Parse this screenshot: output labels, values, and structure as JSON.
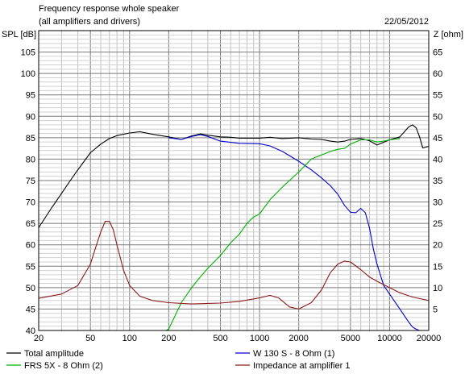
{
  "chart_data": {
    "type": "line",
    "title": "Frequency response whole speaker",
    "subtitle": "(all amplifiers and drivers)",
    "date": "22/05/2012",
    "ylabel": "SPL [dB]",
    "y2label": "Z [ohm]",
    "x_scale": "log",
    "xlim": [
      20,
      20000
    ],
    "ylim": [
      40,
      110
    ],
    "y2lim": [
      0,
      70
    ],
    "grid": true,
    "x_ticks": [
      {
        "v": 20,
        "label": "20"
      },
      {
        "v": 50,
        "label": "50"
      },
      {
        "v": 100,
        "label": "100"
      },
      {
        "v": 200,
        "label": "200"
      },
      {
        "v": 500,
        "label": "500"
      },
      {
        "v": 1000,
        "label": "1000"
      },
      {
        "v": 2000,
        "label": "2000"
      },
      {
        "v": 5000,
        "label": "5000"
      },
      {
        "v": 10000,
        "label": "10000"
      },
      {
        "v": 20000,
        "label": "20000"
      }
    ],
    "y_ticks": [
      {
        "v": 40,
        "label": "40"
      },
      {
        "v": 45,
        "label": "45"
      },
      {
        "v": 50,
        "label": "50"
      },
      {
        "v": 55,
        "label": "55"
      },
      {
        "v": 60,
        "label": "60"
      },
      {
        "v": 65,
        "label": "65"
      },
      {
        "v": 70,
        "label": "70"
      },
      {
        "v": 75,
        "label": "75"
      },
      {
        "v": 80,
        "label": "80"
      },
      {
        "v": 85,
        "label": "85"
      },
      {
        "v": 90,
        "label": "90"
      },
      {
        "v": 95,
        "label": "95"
      },
      {
        "v": 100,
        "label": "100"
      },
      {
        "v": 105,
        "label": "105"
      }
    ],
    "y2_ticks": [
      {
        "v": 5,
        "label": "5"
      },
      {
        "v": 10,
        "label": "10"
      },
      {
        "v": 15,
        "label": "15"
      },
      {
        "v": 20,
        "label": "20"
      },
      {
        "v": 25,
        "label": "25"
      },
      {
        "v": 30,
        "label": "30"
      },
      {
        "v": 35,
        "label": "35"
      },
      {
        "v": 40,
        "label": "40"
      },
      {
        "v": 45,
        "label": "45"
      },
      {
        "v": 50,
        "label": "50"
      },
      {
        "v": 55,
        "label": "55"
      },
      {
        "v": 60,
        "label": "60"
      },
      {
        "v": 65,
        "label": "65"
      }
    ],
    "legend_position": "bottom",
    "series": [
      {
        "name": "Total amplitude",
        "color": "#000000",
        "axis": "left",
        "legend_slot": 0,
        "x": [
          20,
          25,
          30,
          35,
          40,
          50,
          60,
          70,
          80,
          100,
          120,
          150,
          200,
          250,
          300,
          350,
          400,
          500,
          600,
          700,
          800,
          1000,
          1200,
          1500,
          2000,
          2500,
          3000,
          3500,
          4000,
          4500,
          5000,
          6000,
          7000,
          8000,
          10000,
          12000,
          14000,
          15000,
          16000,
          17000,
          18000,
          20000
        ],
        "y": [
          64,
          68.5,
          72,
          75,
          77.5,
          81.5,
          83.5,
          84.8,
          85.5,
          86.1,
          86.4,
          85.8,
          85.2,
          84.6,
          85.4,
          85.9,
          85.6,
          85.2,
          85.1,
          84.9,
          84.9,
          84.9,
          85.1,
          84.8,
          85,
          84.7,
          84.6,
          84.2,
          84,
          84.2,
          84.6,
          84.8,
          84.3,
          83.3,
          84.5,
          85.2,
          87.5,
          88,
          87.3,
          85.2,
          82.6,
          83
        ]
      },
      {
        "name": "W 130 S - 8 Ohm (1)",
        "color": "#0000cc",
        "axis": "left",
        "legend_slot": 1,
        "x": [
          200,
          250,
          300,
          350,
          400,
          500,
          700,
          1000,
          1200,
          1500,
          2000,
          2500,
          3000,
          3500,
          4000,
          4500,
          5000,
          5500,
          6000,
          6500,
          7000,
          7500,
          8000,
          9000,
          10000,
          12000,
          14000,
          15000,
          16000,
          17000,
          18000,
          20000
        ],
        "y": [
          85,
          84.6,
          85.3,
          85.7,
          85.3,
          84.2,
          83.7,
          83.6,
          83.1,
          81.8,
          79.5,
          77.5,
          75.6,
          73.8,
          71.8,
          69.2,
          67.6,
          67.5,
          68.5,
          67.5,
          64,
          59,
          55.5,
          50.5,
          48.5,
          45,
          42,
          40.8,
          40.3,
          40,
          40,
          40
        ]
      },
      {
        "name": "FRS 5X - 8 Ohm (2)",
        "color": "#00b000",
        "axis": "left",
        "legend_slot": 2,
        "x": [
          20,
          100,
          150,
          190,
          200,
          250,
          300,
          350,
          400,
          500,
          600,
          700,
          800,
          900,
          1000,
          1200,
          1500,
          2000,
          2500,
          3000,
          3500,
          4000,
          4500,
          5000,
          6000,
          7000,
          8000,
          9000,
          10000,
          12000
        ],
        "y": [
          40,
          40,
          40,
          40,
          40.3,
          46.5,
          50,
          52.5,
          54.5,
          57.5,
          60.5,
          62.5,
          65,
          66.5,
          67.2,
          70.5,
          73.5,
          77,
          80,
          81,
          81.8,
          82.3,
          82.5,
          83.5,
          84.5,
          84.5,
          84,
          84.2,
          84.5,
          84.8
        ]
      },
      {
        "name": "Impedance at amplifier 1",
        "color": "#8b1a1a",
        "axis": "right",
        "legend_slot": 3,
        "x": [
          20,
          30,
          40,
          50,
          55,
          60,
          65,
          70,
          75,
          80,
          90,
          100,
          120,
          150,
          200,
          300,
          500,
          700,
          1000,
          1200,
          1400,
          1700,
          2000,
          2500,
          3000,
          3500,
          4000,
          4500,
          5000,
          6000,
          7000,
          8000,
          10000,
          12000,
          15000,
          20000
        ],
        "y": [
          7.5,
          8.5,
          10.5,
          15.5,
          19.5,
          23,
          25.5,
          25.5,
          23.5,
          20,
          14,
          10.5,
          8,
          7,
          6.5,
          6.2,
          6.4,
          6.8,
          7.6,
          8.2,
          7.6,
          5.5,
          5,
          6.5,
          9.5,
          13.5,
          15.5,
          16.2,
          16,
          14.2,
          12.5,
          11.5,
          10,
          8.8,
          7.8,
          7
        ]
      }
    ]
  }
}
